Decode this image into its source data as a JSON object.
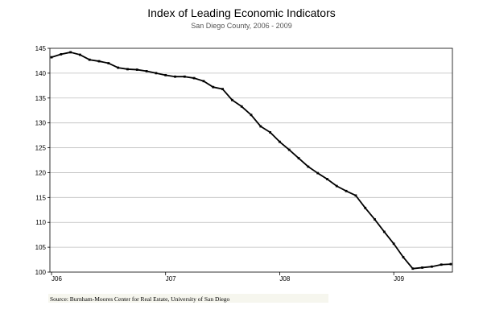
{
  "chart_data": {
    "type": "line",
    "title": "Index of Leading Economic Indicators",
    "subtitle": "San Diego County, 2006 - 2009",
    "source": "Source:  Burnham-Moores Center for Real Estate, University of San Diego",
    "xlabel": "",
    "ylabel": "",
    "ylim": [
      100,
      145
    ],
    "yticks": [
      "100",
      "105",
      "110",
      "115",
      "120",
      "125",
      "130",
      "135",
      "140",
      "145"
    ],
    "xticks": [
      "J06",
      "J07",
      "J08",
      "J09"
    ],
    "grid": true,
    "legend": "none",
    "line_color": "#000000",
    "series": [
      {
        "values": [
          143.2,
          143.8,
          144.2,
          143.7,
          142.7,
          142.4,
          142.0,
          141.1,
          140.8,
          140.7,
          140.4,
          140.0,
          139.6,
          139.3,
          139.3,
          139.0,
          138.4,
          137.2,
          136.8,
          134.6,
          133.3,
          131.6,
          129.3,
          128.1,
          126.2,
          124.6,
          122.9,
          121.2,
          119.9,
          118.7,
          117.3,
          116.3,
          115.4,
          112.9,
          110.6,
          108.1,
          105.7,
          103.0,
          100.7,
          100.9,
          101.1,
          101.5,
          101.6
        ]
      }
    ]
  }
}
